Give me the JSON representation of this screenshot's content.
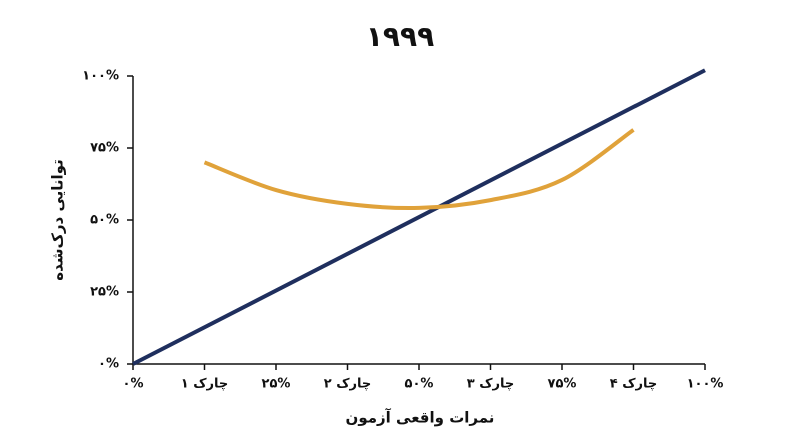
{
  "chart_data": {
    "type": "line",
    "title": "۱۹۹۹",
    "x_label": "نمرات واقعی آزمون",
    "y_label": "توانایی درک‌شده",
    "xlim": [
      0,
      100
    ],
    "ylim": [
      0,
      100
    ],
    "xticks": [
      {
        "value": 0,
        "label": "۰%"
      },
      {
        "value": 12.5,
        "label": "چارک ۱"
      },
      {
        "value": 25,
        "label": "۲۵%"
      },
      {
        "value": 37.5,
        "label": "چارک ۲"
      },
      {
        "value": 50,
        "label": "۵۰%"
      },
      {
        "value": 62.5,
        "label": "چارک ۳"
      },
      {
        "value": 75,
        "label": "۷۵%"
      },
      {
        "value": 87.5,
        "label": "چارک ۴"
      },
      {
        "value": 100,
        "label": "۱۰۰%"
      }
    ],
    "yticks": [
      {
        "value": 0,
        "label": "۰%"
      },
      {
        "value": 25,
        "label": "۲۵%"
      },
      {
        "value": 50,
        "label": "۵۰%"
      },
      {
        "value": 75,
        "label": "۷۵%"
      },
      {
        "value": 100,
        "label": "۱۰۰%"
      }
    ],
    "series": [
      {
        "color": "#1f2f5e",
        "x": [
          0,
          100
        ],
        "values": [
          0,
          102
        ],
        "smooth": false
      },
      {
        "color": "#e0a23a",
        "x": [
          12.5,
          25,
          37.5,
          50,
          62.5,
          75,
          87.5
        ],
        "values": [
          70,
          60.4,
          55.6,
          54.2,
          56.9,
          63.9,
          81.3
        ],
        "smooth": true
      }
    ]
  }
}
